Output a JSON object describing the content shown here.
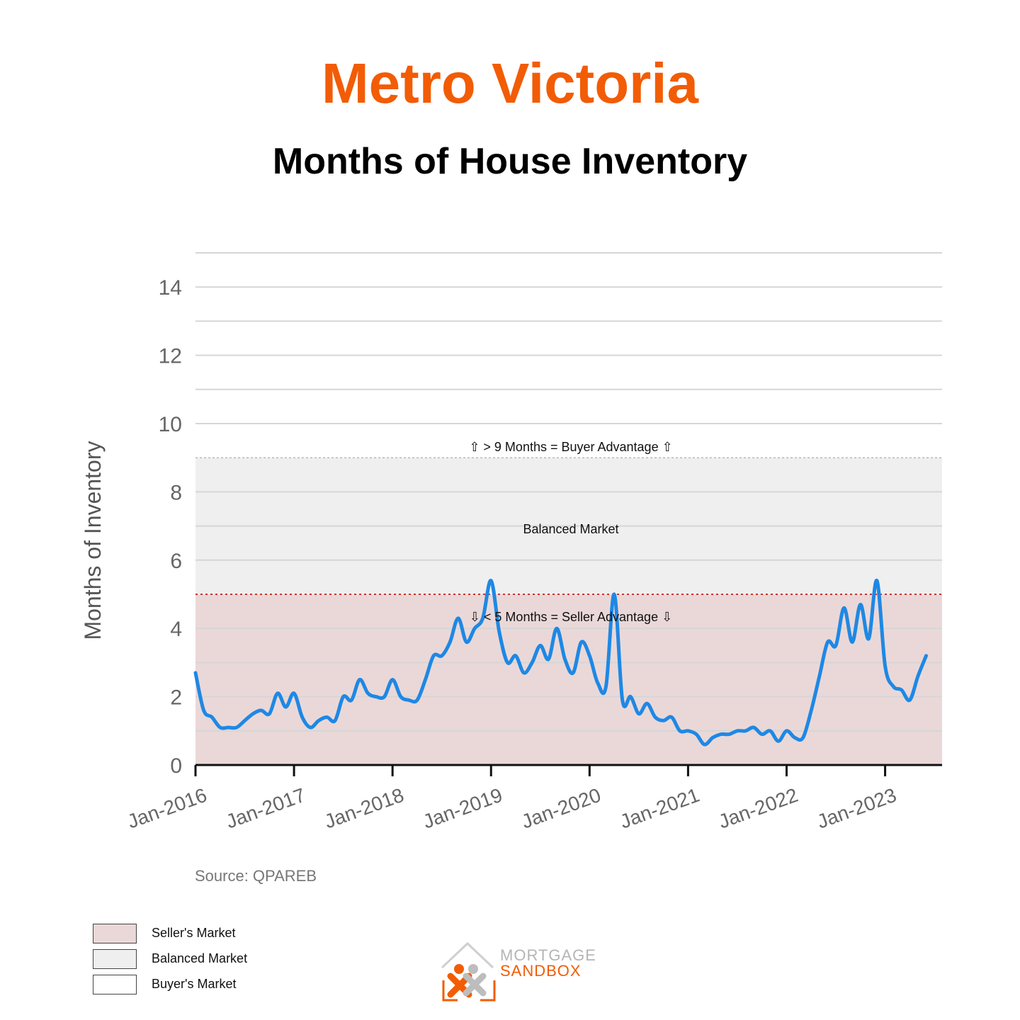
{
  "page": {
    "title": "Metro Victoria",
    "subtitle": "Months of House Inventory"
  },
  "colors": {
    "title": "#f25c05",
    "line": "#1e88e5",
    "sellers_zone": "#ead8d8",
    "balanced_zone": "#efefef",
    "buyers_zone": "#ffffff",
    "threshold_line": "#d03030"
  },
  "annotations": {
    "buyer": "⇧ > 9 Months = Buyer Advantage ⇧",
    "balanced": "Balanced Market",
    "seller": "⇩ < 5 Months = Seller Advantage ⇩"
  },
  "source": "Source: QPAREB",
  "legend": [
    {
      "label": "Seller's Market",
      "color": "#ead8d8"
    },
    {
      "label": "Balanced Market",
      "color": "#efefef"
    },
    {
      "label": "Buyer's Market",
      "color": "#ffffff"
    }
  ],
  "logo": {
    "line1": "MORTGAGE",
    "line2": "SANDBOX",
    "icon": "house-people-logo-icon"
  },
  "chart_data": {
    "type": "line",
    "title": "",
    "xlabel": "",
    "ylabel": "Months of Inventory",
    "ylim": [
      0,
      15
    ],
    "xlim": [
      "2016-01",
      "2023-07"
    ],
    "yticks": [
      0,
      2,
      4,
      6,
      8,
      10,
      12,
      14
    ],
    "grid": true,
    "legend_position": "bottom-left",
    "categories": [
      "Jan-2016",
      "Jan-2017",
      "Jan-2018",
      "Jan-2019",
      "Jan-2020",
      "Jan-2021",
      "Jan-2022",
      "Jan-2023"
    ],
    "bands": [
      {
        "name": "Seller's Market",
        "from": 0,
        "to": 5
      },
      {
        "name": "Balanced Market",
        "from": 5,
        "to": 9
      },
      {
        "name": "Buyer's Market",
        "from": 9,
        "to": 15
      }
    ],
    "series": [
      {
        "values": [
          [
            "2016-01",
            2.7
          ],
          [
            "2016-02",
            1.6
          ],
          [
            "2016-03",
            1.4
          ],
          [
            "2016-04",
            1.1
          ],
          [
            "2016-05",
            1.1
          ],
          [
            "2016-06",
            1.1
          ],
          [
            "2016-07",
            1.3
          ],
          [
            "2016-08",
            1.5
          ],
          [
            "2016-09",
            1.6
          ],
          [
            "2016-10",
            1.5
          ],
          [
            "2016-11",
            2.1
          ],
          [
            "2016-12",
            1.7
          ],
          [
            "2017-01",
            2.1
          ],
          [
            "2017-02",
            1.4
          ],
          [
            "2017-03",
            1.1
          ],
          [
            "2017-04",
            1.3
          ],
          [
            "2017-05",
            1.4
          ],
          [
            "2017-06",
            1.3
          ],
          [
            "2017-07",
            2.0
          ],
          [
            "2017-08",
            1.9
          ],
          [
            "2017-09",
            2.5
          ],
          [
            "2017-10",
            2.1
          ],
          [
            "2017-11",
            2.0
          ],
          [
            "2017-12",
            2.0
          ],
          [
            "2018-01",
            2.5
          ],
          [
            "2018-02",
            2.0
          ],
          [
            "2018-03",
            1.9
          ],
          [
            "2018-04",
            1.9
          ],
          [
            "2018-05",
            2.5
          ],
          [
            "2018-06",
            3.2
          ],
          [
            "2018-07",
            3.2
          ],
          [
            "2018-08",
            3.6
          ],
          [
            "2018-09",
            4.3
          ],
          [
            "2018-10",
            3.6
          ],
          [
            "2018-11",
            4.0
          ],
          [
            "2018-12",
            4.3
          ],
          [
            "2019-01",
            5.4
          ],
          [
            "2019-02",
            3.9
          ],
          [
            "2019-03",
            3.0
          ],
          [
            "2019-04",
            3.2
          ],
          [
            "2019-05",
            2.7
          ],
          [
            "2019-06",
            3.0
          ],
          [
            "2019-07",
            3.5
          ],
          [
            "2019-08",
            3.1
          ],
          [
            "2019-09",
            4.0
          ],
          [
            "2019-10",
            3.1
          ],
          [
            "2019-11",
            2.7
          ],
          [
            "2019-12",
            3.6
          ],
          [
            "2020-01",
            3.2
          ],
          [
            "2020-02",
            2.4
          ],
          [
            "2020-03",
            2.3
          ],
          [
            "2020-04",
            5.0
          ],
          [
            "2020-05",
            1.9
          ],
          [
            "2020-06",
            2.0
          ],
          [
            "2020-07",
            1.5
          ],
          [
            "2020-08",
            1.8
          ],
          [
            "2020-09",
            1.4
          ],
          [
            "2020-10",
            1.3
          ],
          [
            "2020-11",
            1.4
          ],
          [
            "2020-12",
            1.0
          ],
          [
            "2021-01",
            1.0
          ],
          [
            "2021-02",
            0.9
          ],
          [
            "2021-03",
            0.6
          ],
          [
            "2021-04",
            0.8
          ],
          [
            "2021-05",
            0.9
          ],
          [
            "2021-06",
            0.9
          ],
          [
            "2021-07",
            1.0
          ],
          [
            "2021-08",
            1.0
          ],
          [
            "2021-09",
            1.1
          ],
          [
            "2021-10",
            0.9
          ],
          [
            "2021-11",
            1.0
          ],
          [
            "2021-12",
            0.7
          ],
          [
            "2022-01",
            1.0
          ],
          [
            "2022-02",
            0.8
          ],
          [
            "2022-03",
            0.8
          ],
          [
            "2022-04",
            1.6
          ],
          [
            "2022-05",
            2.6
          ],
          [
            "2022-06",
            3.6
          ],
          [
            "2022-07",
            3.5
          ],
          [
            "2022-08",
            4.6
          ],
          [
            "2022-09",
            3.6
          ],
          [
            "2022-10",
            4.7
          ],
          [
            "2022-11",
            3.7
          ],
          [
            "2022-12",
            5.4
          ],
          [
            "2023-01",
            2.9
          ],
          [
            "2023-02",
            2.3
          ],
          [
            "2023-03",
            2.2
          ],
          [
            "2023-04",
            1.9
          ],
          [
            "2023-05",
            2.6
          ],
          [
            "2023-06",
            3.2
          ]
        ]
      }
    ]
  }
}
